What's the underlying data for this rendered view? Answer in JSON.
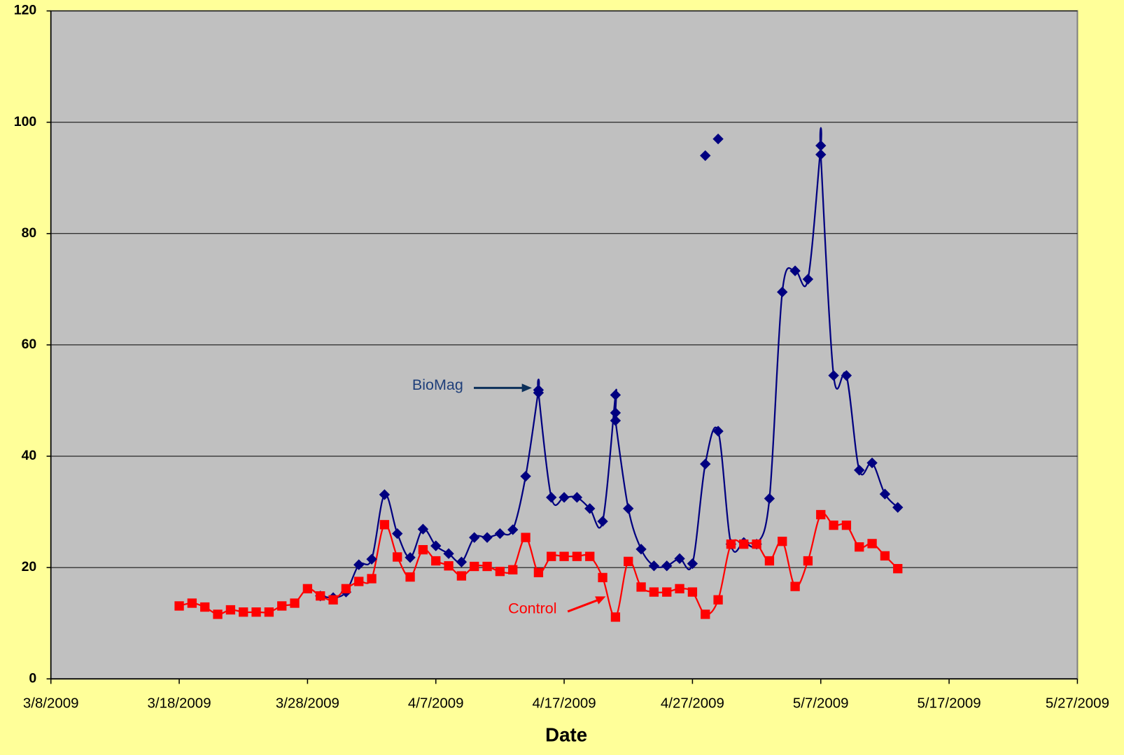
{
  "chart_data": {
    "type": "line",
    "x_label": "Date",
    "xlim": [
      "3/8/2009",
      "5/27/2009"
    ],
    "xticks": [
      "3/8/2009",
      "3/18/2009",
      "3/28/2009",
      "4/7/2009",
      "4/17/2009",
      "4/27/2009",
      "5/7/2009",
      "5/17/2009",
      "5/27/2009"
    ],
    "ylim": [
      0,
      120
    ],
    "yticks": [
      0,
      20,
      40,
      60,
      80,
      100,
      120
    ],
    "grid": true,
    "legend": false,
    "smooth": true,
    "series": [
      {
        "name": "BioMag",
        "color": "#000080",
        "marker": "diamond",
        "x": [
          "3/29/2009",
          "3/30/2009",
          "3/31/2009",
          "4/1/2009",
          "4/2/2009",
          "4/3/2009",
          "4/4/2009",
          "4/5/2009",
          "4/6/2009",
          "4/7/2009",
          "4/8/2009",
          "4/9/2009",
          "4/10/2009",
          "4/11/2009",
          "4/12/2009",
          "4/13/2009",
          "4/14/2009",
          "4/15/2009",
          "4/15/2009",
          "4/16/2009",
          "4/17/2009",
          "4/18/2009",
          "4/19/2009",
          "4/20/2009",
          "4/21/2009",
          "4/21/2009",
          "4/21/2009",
          "4/22/2009",
          "4/23/2009",
          "4/24/2009",
          "4/25/2009",
          "4/26/2009",
          "4/27/2009",
          "4/28/2009",
          "4/29/2009",
          "4/30/2009",
          "5/1/2009",
          "5/2/2009",
          "5/3/2009",
          "5/4/2009",
          "5/5/2009",
          "5/6/2009",
          "5/7/2009",
          "5/7/2009",
          "5/8/2009",
          "5/9/2009",
          "5/10/2009",
          "5/11/2009",
          "5/12/2009",
          "5/13/2009"
        ],
        "values": [
          14.9,
          14.6,
          15.6,
          20.5,
          21.5,
          33.1,
          26.1,
          21.8,
          26.9,
          23.9,
          22.5,
          21.0,
          25.4,
          25.4,
          26.1,
          26.8,
          36.4,
          51.9,
          51.4,
          32.6,
          32.6,
          32.6,
          30.6,
          28.3,
          51.0,
          47.8,
          46.4,
          30.6,
          23.3,
          20.3,
          20.3,
          21.6,
          20.7,
          38.6,
          44.5,
          24.2,
          24.5,
          24.2,
          32.4,
          69.5,
          73.3,
          71.8,
          95.8,
          94.2,
          54.5,
          54.5,
          37.5,
          38.8,
          33.2,
          30.8
        ]
      },
      {
        "name": "Control",
        "color": "#ff0000",
        "marker": "square",
        "x": [
          "3/18/2009",
          "3/19/2009",
          "3/20/2009",
          "3/21/2009",
          "3/22/2009",
          "3/23/2009",
          "3/24/2009",
          "3/25/2009",
          "3/26/2009",
          "3/27/2009",
          "3/28/2009",
          "3/29/2009",
          "3/30/2009",
          "3/31/2009",
          "4/1/2009",
          "4/2/2009",
          "4/3/2009",
          "4/4/2009",
          "4/5/2009",
          "4/6/2009",
          "4/7/2009",
          "4/8/2009",
          "4/9/2009",
          "4/10/2009",
          "4/11/2009",
          "4/12/2009",
          "4/13/2009",
          "4/14/2009",
          "4/15/2009",
          "4/16/2009",
          "4/17/2009",
          "4/18/2009",
          "4/19/2009",
          "4/20/2009",
          "4/21/2009",
          "4/22/2009",
          "4/23/2009",
          "4/24/2009",
          "4/25/2009",
          "4/26/2009",
          "4/27/2009",
          "4/28/2009",
          "4/29/2009",
          "4/30/2009",
          "5/1/2009",
          "5/2/2009",
          "5/3/2009",
          "5/4/2009",
          "5/5/2009",
          "5/6/2009",
          "5/7/2009",
          "5/8/2009",
          "5/9/2009",
          "5/10/2009",
          "5/11/2009",
          "5/12/2009",
          "5/13/2009"
        ],
        "values": [
          13.1,
          13.6,
          12.9,
          11.6,
          12.4,
          12.0,
          12.0,
          12.0,
          13.1,
          13.6,
          16.2,
          14.9,
          14.2,
          16.2,
          17.5,
          18.0,
          27.7,
          21.9,
          18.3,
          23.2,
          21.2,
          20.3,
          18.5,
          20.2,
          20.2,
          19.3,
          19.6,
          25.4,
          19.1,
          22.0,
          22.0,
          22.0,
          22.0,
          18.2,
          11.1,
          21.1,
          16.5,
          15.6,
          15.6,
          16.2,
          15.6,
          11.6,
          14.2,
          24.2,
          24.2,
          24.2,
          21.2,
          24.7,
          16.6,
          21.2,
          29.5,
          27.6,
          27.6,
          23.7,
          24.3,
          22.1,
          19.8
        ]
      },
      {
        "color": "#000080",
        "marker": "diamond",
        "line": false,
        "x": [
          "4/28/2009",
          "4/29/2009"
        ],
        "values": [
          94.0,
          97.0
        ]
      }
    ]
  }
}
